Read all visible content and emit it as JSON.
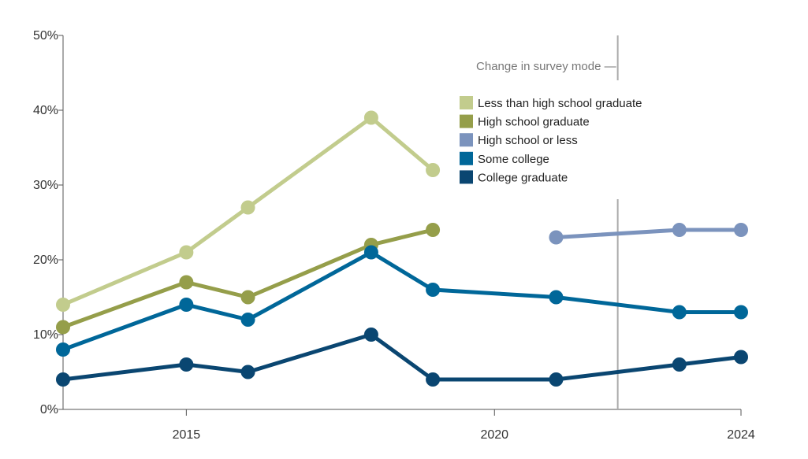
{
  "chart_data": {
    "type": "line",
    "title": "",
    "xlabel": "",
    "ylabel": "",
    "xlim": [
      2013,
      2024
    ],
    "ylim": [
      0,
      50
    ],
    "y_ticks": [
      0,
      10,
      20,
      30,
      40,
      50
    ],
    "y_tick_labels": [
      "0%",
      "10%",
      "20%",
      "30%",
      "40%",
      "50%"
    ],
    "x_ticks": [
      2015,
      2020,
      2024
    ],
    "x_tick_labels": [
      "2015",
      "2020",
      "2024"
    ],
    "grid": false,
    "legend_placement": "top-right",
    "annotation": {
      "text": "Change in survey mode —",
      "x": 2022
    },
    "series": [
      {
        "name": "Less than high school graduate",
        "color": "#c2cc8d",
        "x": [
          2013,
          2015,
          2016,
          2018,
          2019
        ],
        "values": [
          14,
          21,
          27,
          39,
          32
        ]
      },
      {
        "name": "High school graduate",
        "color": "#959e4a",
        "x": [
          2013,
          2015,
          2016,
          2018,
          2019
        ],
        "values": [
          11,
          17,
          15,
          22,
          24
        ]
      },
      {
        "name": "High school or less",
        "color": "#7b93bd",
        "x": [
          2021,
          2023,
          2024
        ],
        "values": [
          23,
          24,
          24
        ]
      },
      {
        "name": "Some college",
        "color": "#006799",
        "x": [
          2013,
          2015,
          2016,
          2018,
          2019,
          2021,
          2023,
          2024
        ],
        "values": [
          8,
          14,
          12,
          21,
          16,
          15,
          13,
          13
        ]
      },
      {
        "name": "College graduate",
        "color": "#0a4671",
        "x": [
          2013,
          2015,
          2016,
          2018,
          2019,
          2021,
          2023,
          2024
        ],
        "values": [
          4,
          6,
          5,
          10,
          4,
          4,
          6,
          7
        ]
      }
    ]
  }
}
